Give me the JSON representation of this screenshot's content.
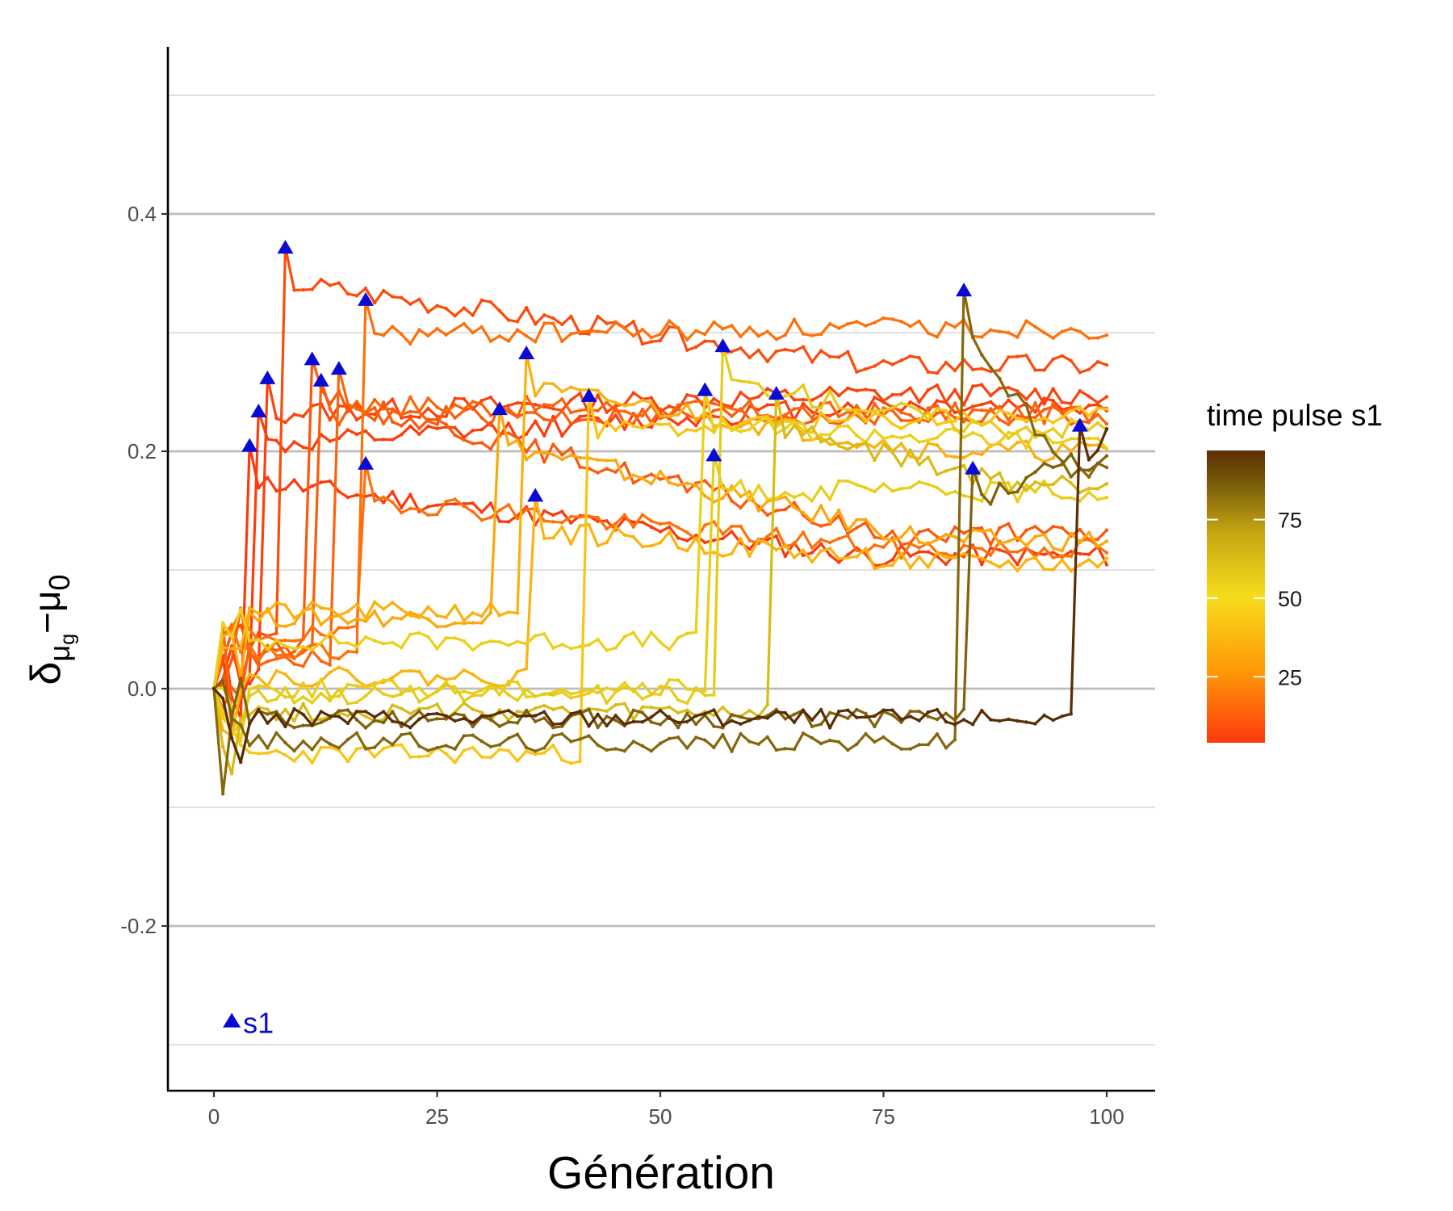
{
  "chart_data": {
    "type": "line",
    "xlabel": "Génération",
    "ylabel": {
      "base": "δ",
      "sub1": "μ",
      "subsub": "g",
      "mid": "−μ",
      "sub2": "0"
    },
    "xlim": [
      0,
      100
    ],
    "ylim": [
      -0.33,
      0.5
    ],
    "x_ticks": [
      0,
      25,
      50,
      75,
      100
    ],
    "y_ticks": [
      -0.2,
      0.0,
      0.2,
      0.4
    ],
    "y_tick_labels": [
      "-0.2",
      "0.0",
      "0.2",
      "0.4"
    ],
    "grid": {
      "major_y": true,
      "minor_y": true,
      "x": false
    },
    "legend": {
      "title": "time pulse s1",
      "type": "colorbar",
      "placement": "right",
      "range": [
        4,
        97
      ],
      "ticks": [
        25,
        50,
        75
      ],
      "colors": [
        "#fc3a0c",
        "#ff9a08",
        "#f6dc1c",
        "#c6a612",
        "#7c5e0c",
        "#5a2e04"
      ]
    },
    "marker_color": "#0a0ad6",
    "annotation": {
      "label": "s1",
      "x": 2,
      "y": -0.28,
      "color": "#0a0ad6"
    },
    "series": [
      {
        "pulse": 4,
        "jump_y": 0.205,
        "plateau_end": 0.112,
        "pre": 0.02,
        "seed": 11
      },
      {
        "pulse": 5,
        "jump_y": 0.234,
        "plateau_end": 0.239,
        "pre": 0.015,
        "seed": 12
      },
      {
        "pulse": 6,
        "jump_y": 0.262,
        "plateau_end": 0.248,
        "pre": 0.01,
        "seed": 13
      },
      {
        "pulse": 8,
        "jump_y": 0.372,
        "plateau_end": 0.272,
        "pre": 0.04,
        "seed": 14
      },
      {
        "pulse": 11,
        "jump_y": 0.278,
        "plateau_end": 0.13,
        "pre": 0.035,
        "seed": 15
      },
      {
        "pulse": 12,
        "jump_y": 0.26,
        "plateau_end": 0.23,
        "pre": 0.03,
        "seed": 16
      },
      {
        "pulse": 14,
        "jump_y": 0.27,
        "plateau_end": 0.232,
        "pre": 0.025,
        "seed": 17
      },
      {
        "pulse": 17,
        "jump_y": 0.328,
        "plateau_end": 0.304,
        "pre": 0.03,
        "seed": 18
      },
      {
        "pulse": 17,
        "jump_y": 0.19,
        "plateau_end": 0.118,
        "pre": 0.045,
        "seed": 19
      },
      {
        "pulse": 32,
        "jump_y": 0.236,
        "plateau_end": 0.125,
        "pre": 0.06,
        "seed": 20
      },
      {
        "pulse": 35,
        "jump_y": 0.283,
        "plateau_end": 0.2,
        "pre": 0.065,
        "seed": 21
      },
      {
        "pulse": 36,
        "jump_y": 0.163,
        "plateau_end": 0.105,
        "pre": 0.01,
        "seed": 22
      },
      {
        "pulse": 42,
        "jump_y": 0.247,
        "plateau_end": 0.228,
        "pre": -0.055,
        "seed": 23
      },
      {
        "pulse": 55,
        "jump_y": 0.252,
        "plateau_end": 0.21,
        "pre": 0.04,
        "seed": 24
      },
      {
        "pulse": 56,
        "jump_y": 0.197,
        "plateau_end": 0.166,
        "pre": 0.0,
        "seed": 25
      },
      {
        "pulse": 57,
        "jump_y": 0.289,
        "plateau_end": 0.22,
        "pre": -0.005,
        "seed": 26
      },
      {
        "pulse": 63,
        "jump_y": 0.249,
        "plateau_end": 0.172,
        "pre": -0.02,
        "seed": 27
      },
      {
        "pulse": 84,
        "jump_y": 0.336,
        "plateau_end": 0.183,
        "pre": -0.045,
        "seed": 28
      },
      {
        "pulse": 85,
        "jump_y": 0.186,
        "plateau_end": 0.19,
        "pre": -0.025,
        "seed": 29
      },
      {
        "pulse": 97,
        "jump_y": 0.222,
        "plateau_end": 0.21,
        "pre": -0.025,
        "seed": 30
      }
    ]
  }
}
